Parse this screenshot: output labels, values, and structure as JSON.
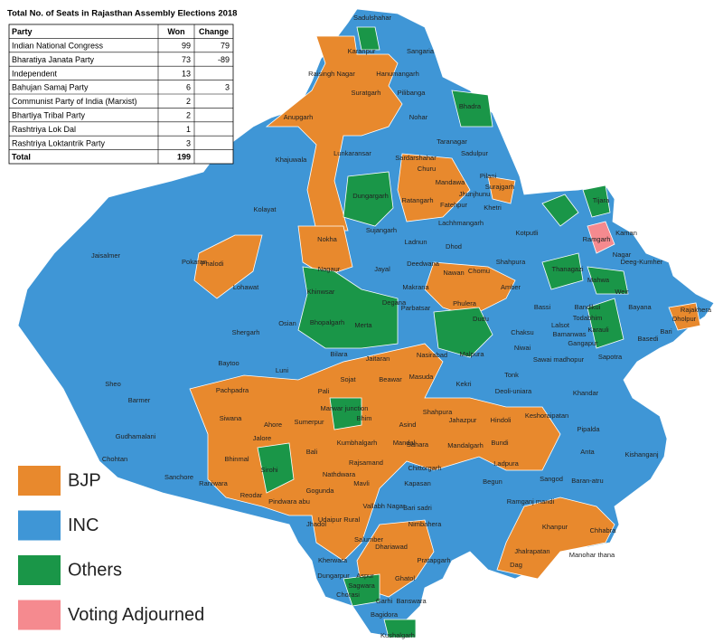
{
  "title": "Total No. of Seats in Rajasthan Assembly Elections 2018",
  "table": {
    "header": [
      "Party",
      "Won",
      "Change"
    ],
    "rows": [
      {
        "party": "Indian National Congress",
        "won": 99,
        "change": 79
      },
      {
        "party": "Bharatiya Janata Party",
        "won": 73,
        "change": -89
      },
      {
        "party": "Independent",
        "won": 13
      },
      {
        "party": "Bahujan Samaj Party",
        "won": 6,
        "change": 3
      },
      {
        "party": "Communist Party of India (Marxist)",
        "won": 2
      },
      {
        "party": "Bhartiya Tribal Party",
        "won": 2
      },
      {
        "party": "Rashtriya Lok Dal",
        "won": 1
      },
      {
        "party": "Rashtriya Loktantrik Party",
        "won": 3
      },
      {
        "party": "Total",
        "won": 199
      }
    ]
  },
  "legend": [
    {
      "label": "BJP",
      "color": "#e8892d"
    },
    {
      "label": "INC",
      "color": "#3f96d6"
    },
    {
      "label": "Others",
      "color": "#1a9648"
    },
    {
      "label": "Voting Adjourned",
      "color": "#f58a8f"
    }
  ],
  "map": {
    "labels": [
      "Sadulshahar",
      "Karanpur",
      "Sangaria",
      "Raisingh Nagar",
      "Hanumangarh",
      "Suratgarh",
      "Pilibanga",
      "Anupgarh",
      "Nohar",
      "Bhadra",
      "Taranagar",
      "Lunkaransar",
      "Sardarshahar",
      "Sadulpur",
      "Khajuwala",
      "Churu",
      "Pilani",
      "Mandawa",
      "Surajgarh",
      "Jhunjhunu",
      "Dungargarh",
      "Ratangarh",
      "Fatehpur",
      "Kolayat",
      "Lachhmangarh",
      "Sujangarh",
      "Nokha",
      "Ladnun",
      "Dhod",
      "Pokaran",
      "Phalodi",
      "Jaisalmer",
      "Lohawat",
      "Nagaur",
      "Jayal",
      "Deedwana",
      "Nawan",
      "Khinwsar",
      "Degana",
      "Makrana",
      "Chomu",
      "Amber",
      "Shahpura",
      "Phulera",
      "Parbatsar",
      "Dudu",
      "Bhopalgarh",
      "Merta",
      "Osian",
      "Shergarh",
      "Chaksu",
      "Lalsot",
      "Bassi",
      "Bandikui",
      "Baytoo",
      "Bilara",
      "Jaitaran",
      "Nasirabad",
      "Malpura",
      "Niwai",
      "Luni",
      "Sheo",
      "Pachpadra",
      "Masuda",
      "Kekri",
      "Tonk",
      "Sojat",
      "Beawar",
      "Pali",
      "Barmer",
      "Deoli-uniara",
      "Khandar",
      "Siwana",
      "Ahore",
      "Sumerpur",
      "Bhim",
      "Asind",
      "Shahpura",
      "Hindoli",
      "Keshoraipatan",
      "Marwar junction",
      "Jalore",
      "Bali",
      "Mandal",
      "Jahazpur",
      "Mandalgarh",
      "Bundi",
      "Pipalda",
      "Gudhamalani",
      "Bhinmal",
      "Sahara",
      "Kumbhalgarh",
      "Ladpura",
      "Anta",
      "Kishanganj",
      "Chohtan",
      "Raniwara",
      "Rajsamand",
      "Sirohi",
      "Kapasan",
      "Chittorgarh",
      "Begun",
      "Sangod",
      "Baran-atru",
      "Sanchore",
      "Nathdwara",
      "Mavli",
      "Reodar",
      "Pindwara abu",
      "Gogunda",
      "Vallabh Nagar",
      "Bari sadri",
      "Ramganj mandi",
      "Khanpur",
      "Chhabra",
      "Jhadol",
      "Udaipur Rural",
      "Nimbahera",
      "Jhalrapatan",
      "Manohar thana",
      "Salumber",
      "Dhariawad",
      "Kherwara",
      "Dag",
      "Aspur",
      "Pratapgarh",
      "Dungarpur",
      "Ghatol",
      "Sagwara",
      "Chorasi",
      "Garhi",
      "Banswara",
      "Bagidora",
      "Kushalgarh",
      "Kaman",
      "Nagar",
      "Deeg-Kumher",
      "Weir",
      "Bayana",
      "Rajakhera",
      "Dholpur",
      "Bari",
      "Basedi",
      "Sapotra",
      "Karauli",
      "Todabhim",
      "Bamanwas",
      "Sawai madhopur",
      "Gangapur",
      "Mahwa",
      "Thanagazi",
      "Tijara",
      "Kotputli",
      "Khetri",
      "Ramgarh"
    ]
  }
}
